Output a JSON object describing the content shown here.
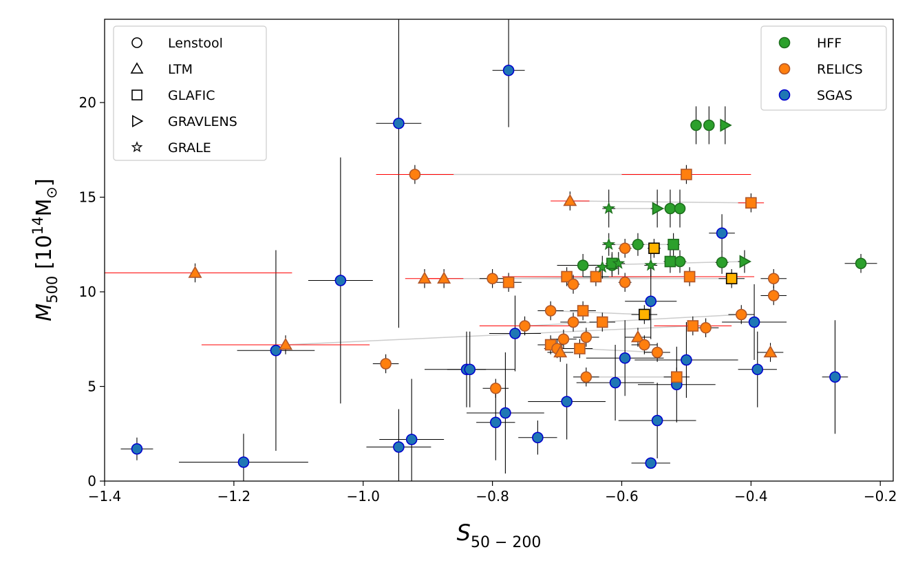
{
  "chart_data": {
    "type": "scatter",
    "xlabel_main": "S",
    "xlabel_sub": "50 − 200",
    "ylabel_main": "M",
    "ylabel_sub": "500",
    "ylabel_unit_pre": "[10",
    "ylabel_unit_sup": "14",
    "ylabel_unit_post": "M",
    "ylabel_unit_sun": "⊙",
    "ylabel_unit_close": "]",
    "xlim": [
      -1.4,
      -0.18
    ],
    "ylim": [
      0,
      24.4
    ],
    "xticks": [
      -1.4,
      -1.2,
      -1.0,
      -0.8,
      -0.6,
      -0.4,
      -0.2
    ],
    "xtick_labels": [
      "−1.4",
      "−1.2",
      "−1.0",
      "−0.8",
      "−0.6",
      "−0.4",
      "−0.2"
    ],
    "yticks": [
      0,
      5,
      10,
      15,
      20
    ],
    "ytick_labels": [
      "0",
      "5",
      "10",
      "15",
      "20"
    ],
    "colors": {
      "HFF": "#2ca02c",
      "HFF_edge": "#1e6e1e",
      "RELICS": "#ff7f0e",
      "RELICS_edge": "#b0572a",
      "SGAS": "#1f77b4",
      "SGAS_edge": "#0000cd",
      "GLAFIC_gold": "#ffb300",
      "err_black": "#000000",
      "err_red": "#ff0000",
      "conn": "#cccccc"
    },
    "legend_methods": [
      {
        "marker": "circle",
        "label": "Lenstool"
      },
      {
        "marker": "triangle",
        "label": "LTM"
      },
      {
        "marker": "square",
        "label": "GLAFIC"
      },
      {
        "marker": "tri-right",
        "label": "GRAVLENS"
      },
      {
        "marker": "star",
        "label": "GRALE"
      }
    ],
    "legend_surveys": [
      {
        "key": "HFF",
        "label": "HFF"
      },
      {
        "key": "RELICS",
        "label": "RELICS"
      },
      {
        "key": "SGAS",
        "label": "SGAS"
      }
    ],
    "series": {
      "HFF": [
        {
          "m": "circle",
          "x": -0.485,
          "y": 18.8,
          "xe": 0.008,
          "ye": 1.0
        },
        {
          "m": "circle",
          "x": -0.465,
          "y": 18.8,
          "xe": 0.008,
          "ye": 1.0
        },
        {
          "m": "tri-right",
          "x": -0.44,
          "y": 18.8,
          "xe": 0.008,
          "ye": 1.0
        },
        {
          "m": "circle",
          "x": -0.525,
          "y": 14.4,
          "xe": 0.008,
          "ye": 1.0
        },
        {
          "m": "circle",
          "x": -0.51,
          "y": 14.4,
          "xe": 0.008,
          "ye": 1.0
        },
        {
          "m": "tri-right",
          "x": -0.545,
          "y": 14.4,
          "xe": 0.01,
          "ye": 1.0
        },
        {
          "m": "star",
          "x": -0.62,
          "y": 14.4,
          "xe": 0.01,
          "ye": 1.0
        },
        {
          "m": "circle",
          "x": -0.66,
          "y": 11.4,
          "xe": 0.04,
          "ye": 0.6
        },
        {
          "m": "circle",
          "x": -0.615,
          "y": 11.4,
          "xe": 0.01,
          "ye": 0.6
        },
        {
          "m": "circle",
          "x": -0.575,
          "y": 12.5,
          "xe": 0.01,
          "ye": 0.6
        },
        {
          "m": "circle",
          "x": -0.51,
          "y": 11.6,
          "xe": 0.01,
          "ye": 0.6
        },
        {
          "m": "circle",
          "x": -0.445,
          "y": 11.55,
          "xe": 0.01,
          "ye": 0.6
        },
        {
          "m": "circle",
          "x": -0.23,
          "y": 11.5,
          "xe": 0.025,
          "ye": 0.5
        },
        {
          "m": "square",
          "x": -0.615,
          "y": 11.5,
          "xe": 0.01,
          "ye": 0.6
        },
        {
          "m": "square",
          "x": -0.52,
          "y": 12.5,
          "xe": 0.01,
          "ye": 0.6
        },
        {
          "m": "square",
          "x": -0.525,
          "y": 11.6,
          "xe": 0.01,
          "ye": 0.6
        },
        {
          "m": "tri-right",
          "x": -0.41,
          "y": 11.6,
          "xe": 0.01,
          "ye": 0.6
        },
        {
          "m": "star",
          "x": -0.62,
          "y": 12.5,
          "xe": 0.01,
          "ye": 0.6
        },
        {
          "m": "star",
          "x": -0.605,
          "y": 11.5,
          "xe": 0.01,
          "ye": 0.6
        },
        {
          "m": "star",
          "x": -0.555,
          "y": 11.4,
          "xe": 0.01,
          "ye": 0.6
        },
        {
          "m": "star",
          "x": -0.63,
          "y": 11.3,
          "xe": 0.01,
          "ye": 0.6
        }
      ],
      "RELICS": [
        {
          "m": "circle",
          "x": -0.92,
          "y": 16.2,
          "xe": 0.06,
          "ye": 0.5,
          "red": true
        },
        {
          "m": "square",
          "x": -0.5,
          "y": 16.2,
          "xe": 0.1,
          "ye": 0.5,
          "red": true
        },
        {
          "m": "triangle",
          "x": -0.68,
          "y": 14.8,
          "xe": 0.03,
          "ye": 0.5,
          "red": true
        },
        {
          "m": "square",
          "x": -0.4,
          "y": 14.7,
          "xe": 0.02,
          "ye": 0.5,
          "red": true
        },
        {
          "m": "circle",
          "x": -0.595,
          "y": 12.3,
          "xe": 0.01,
          "ye": 0.5
        },
        {
          "m": "square",
          "x": -0.55,
          "y": 12.3,
          "xe": 0.01,
          "ye": 0.5,
          "gold": true
        },
        {
          "m": "triangle",
          "x": -1.26,
          "y": 11.0,
          "xe": 0.15,
          "ye": 0.5,
          "red": true
        },
        {
          "m": "triangle",
          "x": -0.905,
          "y": 10.7,
          "xe": 0.03,
          "ye": 0.5,
          "red": true
        },
        {
          "m": "triangle",
          "x": -0.875,
          "y": 10.7,
          "xe": 0.03,
          "ye": 0.5,
          "red": true
        },
        {
          "m": "circle",
          "x": -0.8,
          "y": 10.7,
          "xe": 0.02,
          "ye": 0.5
        },
        {
          "m": "square",
          "x": -0.775,
          "y": 10.5,
          "xe": 0.02,
          "ye": 0.5
        },
        {
          "m": "square",
          "x": -0.685,
          "y": 10.8,
          "xe": 0.1,
          "ye": 0.5,
          "red": true
        },
        {
          "m": "circle",
          "x": -0.675,
          "y": 10.4,
          "xe": 0.01,
          "ye": 0.5
        },
        {
          "m": "square",
          "x": -0.64,
          "y": 10.8,
          "xe": 0.02,
          "ye": 0.5
        },
        {
          "m": "circle",
          "x": -0.595,
          "y": 10.5,
          "xe": 0.01,
          "ye": 0.5
        },
        {
          "m": "square",
          "x": -0.495,
          "y": 10.8,
          "xe": 0.1,
          "ye": 0.5,
          "red": true
        },
        {
          "m": "square",
          "x": -0.43,
          "y": 10.7,
          "xe": 0.02,
          "ye": 0.5,
          "gold": true
        },
        {
          "m": "circle",
          "x": -0.365,
          "y": 10.7,
          "xe": 0.02,
          "ye": 0.5
        },
        {
          "m": "circle",
          "x": -0.365,
          "y": 9.8,
          "xe": 0.02,
          "ye": 0.5
        },
        {
          "m": "circle",
          "x": -0.71,
          "y": 9.0,
          "xe": 0.02,
          "ye": 0.5
        },
        {
          "m": "square",
          "x": -0.66,
          "y": 9.0,
          "xe": 0.02,
          "ye": 0.5
        },
        {
          "m": "square",
          "x": -0.565,
          "y": 8.8,
          "xe": 0.02,
          "ye": 0.5,
          "gold": true
        },
        {
          "m": "circle",
          "x": -0.75,
          "y": 8.2,
          "xe": 0.07,
          "ye": 0.5,
          "red": true
        },
        {
          "m": "circle",
          "x": -0.675,
          "y": 8.4,
          "xe": 0.02,
          "ye": 0.5
        },
        {
          "m": "square",
          "x": -0.63,
          "y": 8.4,
          "xe": 0.02,
          "ye": 0.5
        },
        {
          "m": "square",
          "x": -0.49,
          "y": 8.2,
          "xe": 0.06,
          "ye": 0.5,
          "red": true
        },
        {
          "m": "circle",
          "x": -0.47,
          "y": 8.1,
          "xe": 0.02,
          "ye": 0.5
        },
        {
          "m": "circle",
          "x": -0.415,
          "y": 8.8,
          "xe": 0.02,
          "ye": 0.5
        },
        {
          "m": "circle",
          "x": -0.69,
          "y": 7.5,
          "xe": 0.02,
          "ye": 0.5
        },
        {
          "m": "circle",
          "x": -0.655,
          "y": 7.6,
          "xe": 0.02,
          "ye": 0.5
        },
        {
          "m": "square",
          "x": -0.71,
          "y": 7.2,
          "xe": 0.02,
          "ye": 0.5
        },
        {
          "m": "circle",
          "x": -0.7,
          "y": 7.0,
          "xe": 0.02,
          "ye": 0.5
        },
        {
          "m": "square",
          "x": -0.665,
          "y": 7.0,
          "xe": 0.02,
          "ye": 0.5
        },
        {
          "m": "triangle",
          "x": -0.695,
          "y": 6.8,
          "xe": 0.02,
          "ye": 0.5
        },
        {
          "m": "triangle",
          "x": -0.575,
          "y": 7.6,
          "xe": 0.02,
          "ye": 0.5
        },
        {
          "m": "circle",
          "x": -0.565,
          "y": 7.2,
          "xe": 0.02,
          "ye": 0.5
        },
        {
          "m": "circle",
          "x": -0.545,
          "y": 6.8,
          "xe": 0.02,
          "ye": 0.5
        },
        {
          "m": "triangle",
          "x": -1.12,
          "y": 7.2,
          "xe": 0.13,
          "ye": 0.5,
          "red": true
        },
        {
          "m": "triangle",
          "x": -0.37,
          "y": 6.8,
          "xe": 0.02,
          "ye": 0.5
        },
        {
          "m": "circle",
          "x": -0.965,
          "y": 6.2,
          "xe": 0.02,
          "ye": 0.5
        },
        {
          "m": "circle",
          "x": -0.655,
          "y": 5.5,
          "xe": 0.02,
          "ye": 0.5
        },
        {
          "m": "square",
          "x": -0.515,
          "y": 5.5,
          "xe": 0.02,
          "ye": 0.5
        },
        {
          "m": "circle",
          "x": -0.795,
          "y": 4.9,
          "xe": 0.02,
          "ye": 0.5
        }
      ],
      "SGAS": [
        {
          "m": "circle",
          "x": -0.775,
          "y": 21.7,
          "xe": 0.025,
          "ye": 3.0
        },
        {
          "m": "circle",
          "x": -0.945,
          "y": 18.9,
          "xe": 0.035,
          "ye": 10.8
        },
        {
          "m": "circle",
          "x": -0.445,
          "y": 13.1,
          "xe": 0.02,
          "ye": 1.0
        },
        {
          "m": "circle",
          "x": -1.035,
          "y": 10.6,
          "xe": 0.05,
          "ye": 6.5
        },
        {
          "m": "circle",
          "x": -0.555,
          "y": 9.5,
          "xe": 0.04,
          "ye": 2.0
        },
        {
          "m": "circle",
          "x": -0.395,
          "y": 8.4,
          "xe": 0.05,
          "ye": 2.0
        },
        {
          "m": "circle",
          "x": -0.765,
          "y": 7.8,
          "xe": 0.04,
          "ye": 2.0
        },
        {
          "m": "circle",
          "x": -1.135,
          "y": 6.9,
          "xe": 0.06,
          "ye": 5.3
        },
        {
          "m": "circle",
          "x": -0.595,
          "y": 6.5,
          "xe": 0.06,
          "ye": 2.0
        },
        {
          "m": "circle",
          "x": -0.5,
          "y": 6.4,
          "xe": 0.08,
          "ye": 2.0
        },
        {
          "m": "circle",
          "x": -0.84,
          "y": 5.9,
          "xe": 0.03,
          "ye": 2.0
        },
        {
          "m": "circle",
          "x": -0.835,
          "y": 5.9,
          "xe": 0.07,
          "ye": 2.0
        },
        {
          "m": "circle",
          "x": -0.39,
          "y": 5.9,
          "xe": 0.03,
          "ye": 2.0
        },
        {
          "m": "circle",
          "x": -0.27,
          "y": 5.5,
          "xe": 0.02,
          "ye": 3.0
        },
        {
          "m": "circle",
          "x": -0.61,
          "y": 5.2,
          "xe": 0.06,
          "ye": 2.0
        },
        {
          "m": "circle",
          "x": -0.515,
          "y": 5.1,
          "xe": 0.06,
          "ye": 2.0
        },
        {
          "m": "circle",
          "x": -0.685,
          "y": 4.2,
          "xe": 0.06,
          "ye": 2.0
        },
        {
          "m": "circle",
          "x": -0.78,
          "y": 3.6,
          "xe": 0.06,
          "ye": 3.2
        },
        {
          "m": "circle",
          "x": -0.545,
          "y": 3.2,
          "xe": 0.06,
          "ye": 2.0
        },
        {
          "m": "circle",
          "x": -0.795,
          "y": 3.1,
          "xe": 0.03,
          "ye": 2.0
        },
        {
          "m": "circle",
          "x": -0.73,
          "y": 2.3,
          "xe": 0.03,
          "ye": 0.9
        },
        {
          "m": "circle",
          "x": -0.925,
          "y": 2.2,
          "xe": 0.05,
          "ye": 3.2
        },
        {
          "m": "circle",
          "x": -0.945,
          "y": 1.8,
          "xe": 0.05,
          "ye": 2.0
        },
        {
          "m": "circle",
          "x": -1.35,
          "y": 1.7,
          "xe": 0.025,
          "ye": 0.6
        },
        {
          "m": "circle",
          "x": -1.185,
          "y": 1.0,
          "xe": 0.1,
          "ye": 1.5
        },
        {
          "m": "circle",
          "x": -0.555,
          "y": 0.95,
          "xe": 0.03,
          "ye": 0.3
        }
      ]
    },
    "connectors": [
      [
        -0.92,
        16.2,
        -0.5,
        16.2
      ],
      [
        -0.68,
        14.8,
        -0.4,
        14.7
      ],
      [
        -0.875,
        10.7,
        -0.43,
        10.7
      ],
      [
        -0.8,
        10.7,
        -0.495,
        10.8
      ],
      [
        -1.12,
        7.2,
        -0.49,
        8.2
      ],
      [
        -0.71,
        9.0,
        -0.565,
        8.8
      ],
      [
        -0.75,
        8.2,
        -0.415,
        8.8
      ],
      [
        -0.665,
        7.0,
        -0.545,
        6.8
      ],
      [
        -0.655,
        5.5,
        -0.515,
        5.5
      ],
      [
        -0.62,
        14.4,
        -0.51,
        14.4
      ],
      [
        -0.62,
        12.5,
        -0.52,
        12.5
      ],
      [
        -0.66,
        11.4,
        -0.41,
        11.6
      ]
    ]
  }
}
